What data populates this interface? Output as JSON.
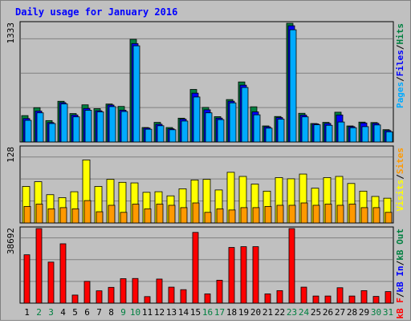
{
  "title": "Daily usage for January 2016",
  "colors": {
    "background": "#c0c0c0",
    "title": "#0000ff",
    "pages": "#00aaff",
    "files": "#0000ff",
    "hits": "#008040",
    "visits": "#ffff00",
    "sites": "#ff9900",
    "kbytes": "#ff0000",
    "day_black": "#000000",
    "day_weekend": "#008040"
  },
  "chart_data": [
    {
      "type": "bar",
      "name": "hits-files-pages",
      "ymax_label": "1333",
      "ylim": [
        0,
        1333
      ],
      "right_label_parts": [
        {
          "text": "Pages",
          "color": "#00aaff"
        },
        {
          "text": "/",
          "color": "#000000"
        },
        {
          "text": "Files",
          "color": "#0000ff"
        },
        {
          "text": "/",
          "color": "#000000"
        },
        {
          "text": "Hits",
          "color": "#008040"
        }
      ],
      "categories": [
        "1",
        "2",
        "3",
        "4",
        "5",
        "6",
        "7",
        "8",
        "9",
        "10",
        "11",
        "12",
        "13",
        "14",
        "15",
        "16",
        "17",
        "18",
        "19",
        "20",
        "21",
        "22",
        "23",
        "24",
        "25",
        "26",
        "27",
        "28",
        "29",
        "30",
        "31"
      ],
      "series": [
        {
          "name": "Hits",
          "values": [
            296,
            385,
            240,
            457,
            319,
            417,
            374,
            426,
            399,
            1153,
            162,
            220,
            162,
            267,
            590,
            388,
            284,
            476,
            674,
            395,
            180,
            286,
            1333,
            322,
            207,
            220,
            334,
            180,
            223,
            218,
            138
          ]
        },
        {
          "name": "Files",
          "values": [
            263,
            347,
            218,
            442,
            303,
            376,
            350,
            415,
            357,
            1105,
            156,
            199,
            148,
            256,
            548,
            361,
            268,
            458,
            638,
            338,
            170,
            274,
            1305,
            302,
            203,
            208,
            303,
            172,
            213,
            209,
            128
          ]
        },
        {
          "name": "Pages",
          "values": [
            243,
            327,
            207,
            427,
            282,
            356,
            338,
            397,
            342,
            1080,
            143,
            182,
            137,
            235,
            505,
            327,
            251,
            439,
            612,
            305,
            155,
            256,
            1260,
            282,
            193,
            187,
            224,
            160,
            172,
            191,
            114
          ]
        }
      ]
    },
    {
      "type": "bar",
      "name": "visits-sites",
      "ymax_label": "128",
      "ylim": [
        0,
        128
      ],
      "right_label_parts": [
        {
          "text": "Visits",
          "color": "#ffff00"
        },
        {
          "text": "/",
          "color": "#000000"
        },
        {
          "text": "Sites",
          "color": "#ff9900"
        }
      ],
      "categories": [
        "1",
        "2",
        "3",
        "4",
        "5",
        "6",
        "7",
        "8",
        "9",
        "10",
        "11",
        "12",
        "13",
        "14",
        "15",
        "16",
        "17",
        "18",
        "19",
        "20",
        "21",
        "22",
        "23",
        "24",
        "25",
        "26",
        "27",
        "28",
        "29",
        "30",
        "31"
      ],
      "series": [
        {
          "name": "Visits",
          "values": [
            62,
            70,
            48,
            43,
            53,
            107,
            62,
            74,
            69,
            68,
            52,
            53,
            46,
            58,
            73,
            74,
            56,
            86,
            79,
            66,
            54,
            77,
            75,
            83,
            59,
            77,
            79,
            67,
            54,
            45,
            42
          ]
        },
        {
          "name": "Sites",
          "values": [
            28,
            32,
            24,
            26,
            24,
            38,
            19,
            30,
            18,
            32,
            24,
            32,
            30,
            26,
            34,
            18,
            24,
            22,
            26,
            26,
            28,
            30,
            30,
            34,
            30,
            32,
            30,
            32,
            26,
            26,
            18
          ]
        }
      ]
    },
    {
      "type": "bar",
      "name": "kbytes",
      "ymax_label": "38692",
      "ylim": [
        0,
        38692
      ],
      "right_label_parts": [
        {
          "text": "kB F",
          "color": "#ff0000"
        },
        {
          "text": "/",
          "color": "#000000"
        },
        {
          "text": "kB In",
          "color": "#0000ff"
        },
        {
          "text": "/",
          "color": "#000000"
        },
        {
          "text": "kB Out",
          "color": "#008040"
        }
      ],
      "categories": [
        "1",
        "2",
        "3",
        "4",
        "5",
        "6",
        "7",
        "8",
        "9",
        "10",
        "11",
        "12",
        "13",
        "14",
        "15",
        "16",
        "17",
        "18",
        "19",
        "20",
        "21",
        "22",
        "23",
        "24",
        "25",
        "26",
        "27",
        "28",
        "29",
        "30",
        "31"
      ],
      "series": [
        {
          "name": "kB F",
          "values": [
            25100,
            38692,
            21300,
            30800,
            4200,
            11300,
            6400,
            8200,
            12700,
            12800,
            3400,
            12500,
            8300,
            7000,
            36700,
            4800,
            11900,
            28900,
            29300,
            29300,
            4800,
            6500,
            38692,
            8300,
            3700,
            3700,
            8000,
            3700,
            6500,
            3500,
            6000
          ]
        }
      ]
    }
  ],
  "days": [
    {
      "label": "1",
      "weekend": false
    },
    {
      "label": "2",
      "weekend": true
    },
    {
      "label": "3",
      "weekend": true
    },
    {
      "label": "4",
      "weekend": false
    },
    {
      "label": "5",
      "weekend": false
    },
    {
      "label": "6",
      "weekend": false
    },
    {
      "label": "7",
      "weekend": false
    },
    {
      "label": "8",
      "weekend": false
    },
    {
      "label": "9",
      "weekend": true
    },
    {
      "label": "10",
      "weekend": true
    },
    {
      "label": "11",
      "weekend": false
    },
    {
      "label": "12",
      "weekend": false
    },
    {
      "label": "13",
      "weekend": false
    },
    {
      "label": "14",
      "weekend": false
    },
    {
      "label": "15",
      "weekend": false
    },
    {
      "label": "16",
      "weekend": true
    },
    {
      "label": "17",
      "weekend": true
    },
    {
      "label": "18",
      "weekend": false
    },
    {
      "label": "19",
      "weekend": false
    },
    {
      "label": "20",
      "weekend": false
    },
    {
      "label": "21",
      "weekend": false
    },
    {
      "label": "22",
      "weekend": false
    },
    {
      "label": "23",
      "weekend": true
    },
    {
      "label": "24",
      "weekend": true
    },
    {
      "label": "25",
      "weekend": false
    },
    {
      "label": "26",
      "weekend": false
    },
    {
      "label": "27",
      "weekend": false
    },
    {
      "label": "28",
      "weekend": false
    },
    {
      "label": "29",
      "weekend": false
    },
    {
      "label": "30",
      "weekend": true
    },
    {
      "label": "31",
      "weekend": true
    }
  ]
}
